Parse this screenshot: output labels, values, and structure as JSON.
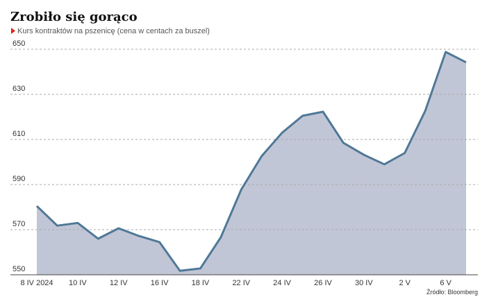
{
  "chart_data": {
    "type": "area",
    "title": "Zrobiło się gorąco",
    "subtitle": "Kurs kontraktów na pszenicę (cena w centach za buszel)",
    "source": "Źródło: Bloomberg",
    "categories": [
      "8 IV 2024",
      null,
      "10 IV",
      null,
      "12 IV",
      null,
      "16 IV",
      null,
      "18 IV",
      null,
      "22 IV",
      null,
      "24 IV",
      null,
      "26 IV",
      null,
      "30 IV",
      null,
      "2 V",
      null,
      "6 V",
      null
    ],
    "values": [
      580.5,
      571.8,
      573,
      566,
      570.6,
      567.2,
      564.5,
      551.8,
      552.8,
      566.6,
      587.8,
      602.6,
      613,
      620.5,
      622.3,
      608.5,
      603.2,
      599,
      604,
      622.6,
      648.8,
      644.2
    ],
    "color": "#4f7896",
    "fill": "#c1c6d6",
    "ylim": [
      550,
      650
    ],
    "yticks": [
      550,
      570,
      590,
      610,
      630,
      650
    ],
    "grid": true
  }
}
